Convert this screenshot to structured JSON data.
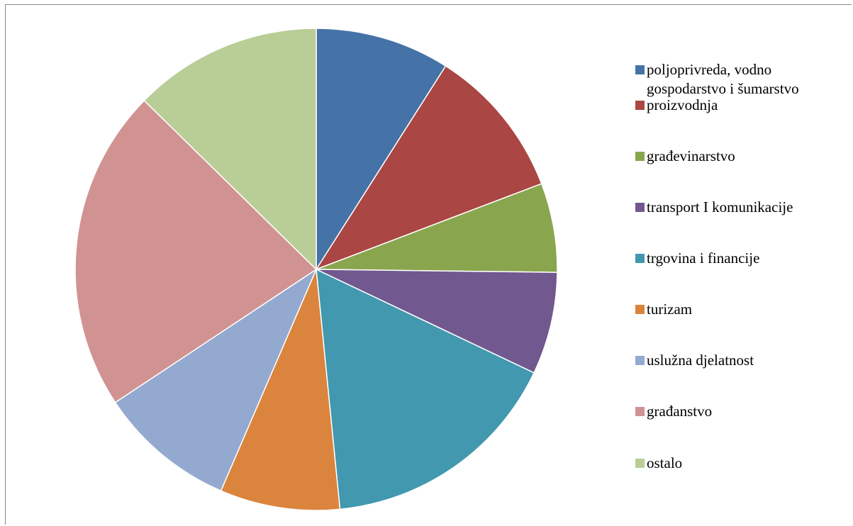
{
  "chart_data": {
    "type": "pie",
    "title": "",
    "legend_position": "right",
    "slices": [
      {
        "label": "poljoprivreda, vodno\ngospodarstvo i šumarstvo",
        "value": 9.2,
        "color": "#4572A7"
      },
      {
        "label": "proizvodnja",
        "value": 10.4,
        "color": "#AA4643"
      },
      {
        "label": "građevinarstvo",
        "value": 6.1,
        "color": "#89A54E"
      },
      {
        "label": "transport I komunikacije",
        "value": 7.0,
        "color": "#71588F"
      },
      {
        "label": "trgovina i financije",
        "value": 16.7,
        "color": "#4198AF"
      },
      {
        "label": "turizam",
        "value": 8.2,
        "color": "#DB843D"
      },
      {
        "label": "uslužna djelatnost",
        "value": 9.4,
        "color": "#93A9CF"
      },
      {
        "label": "građanstvo",
        "value": 22.1,
        "color": "#D19392"
      },
      {
        "label": "ostalo",
        "value": 12.9,
        "color": "#B9CD96"
      }
    ]
  }
}
